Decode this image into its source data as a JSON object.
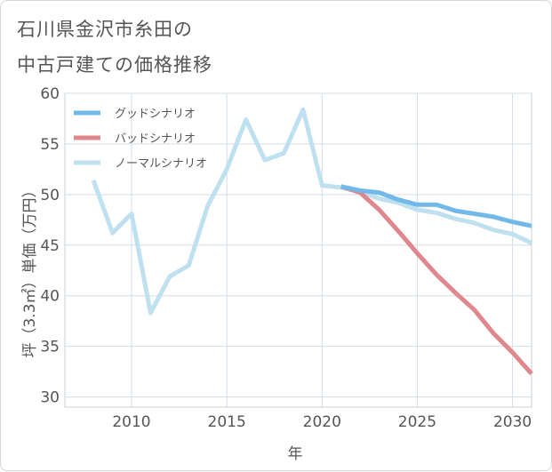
{
  "title_lines": [
    "石川県金沢市糸田の",
    "中古戸建ての価格推移"
  ],
  "chart_data": {
    "type": "line",
    "title": "石川県金沢市糸田の中古戸建ての価格推移",
    "xlabel": "年",
    "ylabel": "坪（3.3㎡）単価（万円）",
    "xlim": [
      2006.5,
      2031
    ],
    "ylim": [
      29,
      60
    ],
    "xticks": [
      2010,
      2015,
      2020,
      2025,
      2030
    ],
    "yticks": [
      30,
      35,
      40,
      45,
      50,
      55,
      60
    ],
    "grid": true,
    "legend_position": "top-left",
    "series": [
      {
        "name": "グッドシナリオ",
        "color": "#72b9ea",
        "x": [
          2021,
          2022,
          2023,
          2024,
          2025,
          2026,
          2027,
          2028,
          2029,
          2030,
          2031
        ],
        "values": [
          50.8,
          50.4,
          50.2,
          49.5,
          49.0,
          49.0,
          48.4,
          48.1,
          47.8,
          47.3,
          46.9
        ]
      },
      {
        "name": "バッドシナリオ",
        "color": "#e0878d",
        "x": [
          2021,
          2022,
          2023,
          2024,
          2025,
          2026,
          2027,
          2028,
          2029,
          2030,
          2031
        ],
        "values": [
          50.8,
          50.2,
          48.5,
          46.4,
          44.2,
          42.1,
          40.3,
          38.6,
          36.3,
          34.4,
          32.3
        ]
      },
      {
        "name": "ノーマルシナリオ",
        "color": "#bfe0ee",
        "x": [
          2008,
          2009,
          2010,
          2011,
          2012,
          2013,
          2014,
          2015,
          2016,
          2017,
          2018,
          2019,
          2020,
          2021,
          2022,
          2023,
          2024,
          2025,
          2026,
          2027,
          2028,
          2029,
          2030,
          2031
        ],
        "values": [
          51.4,
          46.2,
          48.1,
          38.3,
          41.9,
          43.0,
          48.9,
          52.5,
          57.4,
          53.4,
          54.1,
          58.4,
          50.9,
          50.7,
          50.3,
          49.6,
          49.2,
          48.5,
          48.2,
          47.6,
          47.2,
          46.5,
          46.1,
          45.2
        ]
      }
    ]
  }
}
